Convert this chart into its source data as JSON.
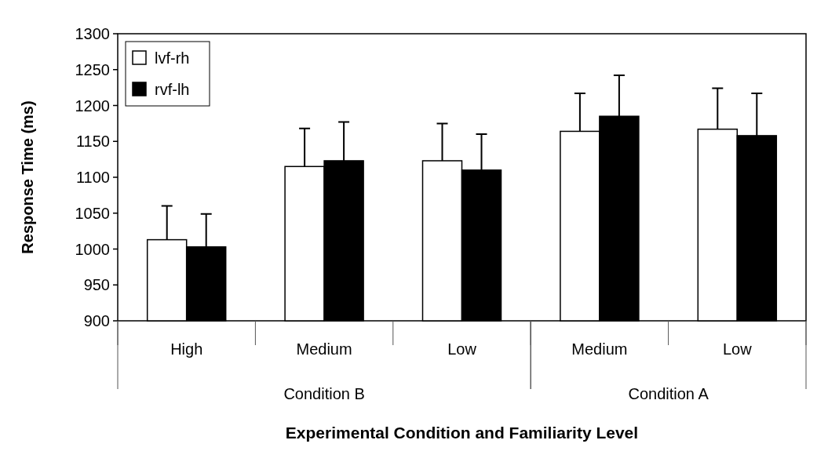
{
  "chart_data": {
    "type": "bar",
    "ylabel": "Response Time (ms)",
    "xlabel": "Experimental Condition and Familiarity Level",
    "categories": [
      "High",
      "Medium",
      "Low",
      "Medium",
      "Low"
    ],
    "series": [
      {
        "name": "lvf-rh",
        "color": "#ffffff",
        "values": [
          1013,
          1115,
          1123,
          1164,
          1167
        ],
        "errors": [
          [
            1013,
            1060
          ],
          [
            1115,
            1168
          ],
          [
            1123,
            1175
          ],
          [
            1164,
            1217
          ],
          [
            1167,
            1224
          ]
        ]
      },
      {
        "name": "rvf-lh",
        "color": "#000000",
        "values": [
          1003,
          1123,
          1110,
          1185,
          1158
        ],
        "errors": [
          [
            1003,
            1049
          ],
          [
            1123,
            1177
          ],
          [
            1110,
            1160
          ],
          [
            1185,
            1242
          ],
          [
            1158,
            1217
          ]
        ]
      }
    ],
    "annotations": [
      "Condition B",
      "Condition A"
    ],
    "ylim": [
      900,
      1300
    ],
    "yticks": [
      900,
      950,
      1000,
      1050,
      1100,
      1150,
      1200,
      1250,
      1300
    ],
    "grid": false,
    "legend": "top left"
  }
}
